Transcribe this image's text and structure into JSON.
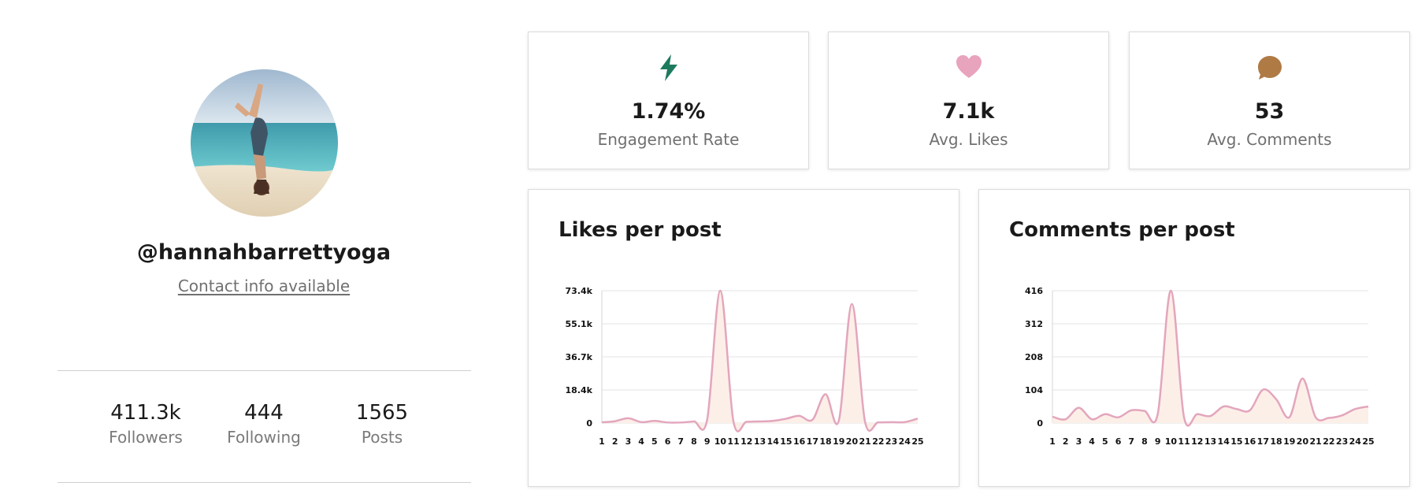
{
  "profile": {
    "handle": "@hannahbarrettyoga",
    "contact_link": "Contact info available",
    "stats": [
      {
        "value": "411.3k",
        "label": "Followers"
      },
      {
        "value": "444",
        "label": "Following"
      },
      {
        "value": "1565",
        "label": "Posts"
      }
    ]
  },
  "metrics": [
    {
      "value": "1.74%",
      "label": "Engagement Rate",
      "icon": "lightning-icon",
      "color": "#1e7a5e"
    },
    {
      "value": "7.1k",
      "label": "Avg. Likes",
      "icon": "heart-icon",
      "color": "#e8a3bd"
    },
    {
      "value": "53",
      "label": "Avg. Comments",
      "icon": "comment-icon",
      "color": "#b07a45"
    }
  ],
  "charts": {
    "likes_title": "Likes per post",
    "comments_title": "Comments per post"
  },
  "chart_data": [
    {
      "type": "area",
      "title": "Likes per post",
      "x": [
        1,
        2,
        3,
        4,
        5,
        6,
        7,
        8,
        9,
        10,
        11,
        12,
        13,
        14,
        15,
        16,
        17,
        18,
        19,
        20,
        21,
        22,
        23,
        24,
        25
      ],
      "x_tick_labels": [
        "1",
        "2",
        "3",
        "4",
        "5",
        "6",
        "7",
        "8",
        "9",
        "10",
        "11",
        "12",
        "13",
        "14",
        "15",
        "16",
        "17",
        "18",
        "19",
        "20",
        "21",
        "22",
        "23",
        "24",
        "25"
      ],
      "y_tick_labels": [
        "0",
        "18.4k",
        "36.7k",
        "55.1k",
        "73.4k"
      ],
      "y_ticks": [
        0,
        18350,
        36700,
        55050,
        73400
      ],
      "ylim": [
        0,
        73400
      ],
      "series": [
        {
          "values": [
            400,
            1000,
            2700,
            500,
            1200,
            300,
            300,
            900,
            1800,
            73400,
            800,
            700,
            900,
            1200,
            2400,
            4000,
            1800,
            16000,
            1200,
            66000,
            600,
            400,
            500,
            500,
            2500
          ]
        }
      ],
      "line_color": "#e3a6bd",
      "fill_color": "#fcefe8",
      "grid": true
    },
    {
      "type": "area",
      "title": "Comments per post",
      "x": [
        1,
        2,
        3,
        4,
        5,
        6,
        7,
        8,
        9,
        10,
        11,
        12,
        13,
        14,
        15,
        16,
        17,
        18,
        19,
        20,
        21,
        22,
        23,
        24,
        25
      ],
      "x_tick_labels": [
        "1",
        "2",
        "3",
        "4",
        "5",
        "6",
        "7",
        "8",
        "9",
        "10",
        "11",
        "12",
        "13",
        "14",
        "15",
        "16",
        "17",
        "18",
        "19",
        "20",
        "21",
        "22",
        "23",
        "24",
        "25"
      ],
      "y_tick_labels": [
        "0",
        "104",
        "208",
        "312",
        "416"
      ],
      "y_ticks": [
        0,
        104,
        208,
        312,
        416
      ],
      "ylim": [
        0,
        416
      ],
      "series": [
        {
          "values": [
            20,
            12,
            48,
            12,
            28,
            18,
            40,
            38,
            28,
            416,
            18,
            28,
            22,
            52,
            44,
            40,
            105,
            75,
            18,
            140,
            18,
            16,
            24,
            44,
            52
          ]
        }
      ],
      "line_color": "#e3a6bd",
      "fill_color": "#fcefe8",
      "grid": true
    }
  ]
}
